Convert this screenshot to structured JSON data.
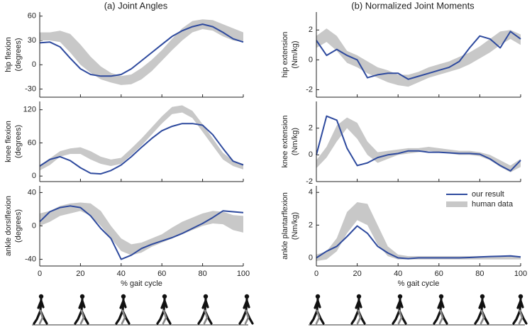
{
  "chart_data": [
    {
      "type": "line",
      "title": "(a) Joint Angles",
      "ylabel": [
        "hip flexion",
        "(degrees)"
      ],
      "x": [
        0,
        5,
        10,
        15,
        20,
        25,
        30,
        35,
        40,
        45,
        50,
        55,
        60,
        65,
        70,
        75,
        80,
        85,
        90,
        95,
        100
      ],
      "xlim": [
        0,
        100
      ],
      "ylim": [
        -40,
        65
      ],
      "xticks": [
        0,
        20,
        40,
        60,
        80,
        100
      ],
      "yticks": [
        -30,
        0,
        30,
        60
      ],
      "series": [
        {
          "type": "band",
          "color": "#c8c8c8",
          "low": [
            30,
            30,
            28,
            15,
            0,
            -10,
            -18,
            -22,
            -25,
            -24,
            -18,
            -8,
            5,
            18,
            30,
            40,
            44,
            42,
            35,
            30,
            28
          ],
          "high": [
            40,
            40,
            42,
            38,
            25,
            10,
            -2,
            -10,
            -14,
            -12,
            -4,
            6,
            18,
            32,
            45,
            54,
            56,
            55,
            50,
            45,
            40
          ]
        },
        {
          "type": "line",
          "color": "#2e4a9e",
          "values": [
            27,
            28,
            22,
            8,
            -5,
            -12,
            -14,
            -14,
            -12,
            -5,
            5,
            15,
            25,
            35,
            42,
            47,
            50,
            47,
            40,
            32,
            28
          ]
        }
      ]
    },
    {
      "type": "line",
      "ylabel": [
        "knee flexion",
        "(degrees)"
      ],
      "x": [
        0,
        5,
        10,
        15,
        20,
        25,
        30,
        35,
        40,
        45,
        50,
        55,
        60,
        65,
        70,
        75,
        80,
        85,
        90,
        95,
        100
      ],
      "xlim": [
        0,
        100
      ],
      "ylim": [
        -10,
        135
      ],
      "xticks": [
        0,
        20,
        40,
        60,
        80,
        100
      ],
      "yticks": [
        0,
        60,
        120
      ],
      "series": [
        {
          "type": "band",
          "color": "#c8c8c8",
          "low": [
            10,
            20,
            35,
            40,
            40,
            30,
            22,
            18,
            22,
            38,
            55,
            75,
            95,
            112,
            115,
            105,
            80,
            55,
            30,
            18,
            12
          ],
          "high": [
            20,
            32,
            45,
            50,
            52,
            45,
            35,
            30,
            33,
            50,
            68,
            88,
            108,
            125,
            128,
            118,
            94,
            68,
            42,
            28,
            22
          ]
        },
        {
          "type": "line",
          "color": "#2e4a9e",
          "values": [
            18,
            30,
            35,
            28,
            15,
            5,
            4,
            10,
            20,
            35,
            52,
            68,
            82,
            90,
            95,
            95,
            92,
            75,
            50,
            27,
            20
          ]
        }
      ]
    },
    {
      "type": "line",
      "ylabel": [
        "ankle dorsiflexion",
        "(degrees)"
      ],
      "xlabel": "% gait cycle",
      "x": [
        0,
        5,
        10,
        15,
        20,
        25,
        30,
        35,
        40,
        45,
        50,
        55,
        60,
        65,
        70,
        75,
        80,
        85,
        90,
        95,
        100
      ],
      "xlim": [
        0,
        100
      ],
      "ylim": [
        -48,
        48
      ],
      "xticks": [
        0,
        20,
        40,
        60,
        80,
        100
      ],
      "yticks": [
        -40,
        0,
        40
      ],
      "series": [
        {
          "type": "band",
          "color": "#c8c8c8",
          "low": [
            0,
            5,
            12,
            15,
            18,
            12,
            0,
            -15,
            -30,
            -35,
            -32,
            -25,
            -20,
            -15,
            -10,
            -5,
            0,
            3,
            2,
            -5,
            -8
          ],
          "high": [
            15,
            18,
            24,
            27,
            28,
            27,
            18,
            0,
            -15,
            -22,
            -20,
            -15,
            -10,
            -2,
            5,
            10,
            15,
            18,
            17,
            13,
            12
          ]
        },
        {
          "type": "line",
          "color": "#2e4a9e",
          "values": [
            5,
            17,
            22,
            24,
            22,
            12,
            -3,
            -15,
            -40,
            -35,
            -27,
            -22,
            -18,
            -14,
            -9,
            -3,
            3,
            10,
            18,
            17,
            16
          ]
        }
      ]
    },
    {
      "type": "line",
      "title": "(b) Normalized Joint Moments",
      "ylabel": [
        "hip extension",
        "(Nm/kg)"
      ],
      "x": [
        0,
        5,
        10,
        15,
        20,
        25,
        30,
        35,
        40,
        45,
        50,
        55,
        60,
        65,
        70,
        75,
        80,
        85,
        90,
        95,
        100
      ],
      "xlim": [
        0,
        100
      ],
      "ylim": [
        -2.5,
        3.2
      ],
      "xticks": [
        0,
        20,
        40,
        60,
        80,
        100
      ],
      "yticks": [
        -2,
        0,
        2
      ],
      "series": [
        {
          "type": "band",
          "color": "#c8c8c8",
          "low": [
            0.8,
            1.2,
            0.6,
            -0.2,
            -0.5,
            -0.9,
            -1.2,
            -1.5,
            -1.7,
            -1.8,
            -1.5,
            -1.2,
            -1.0,
            -0.8,
            -0.6,
            -0.3,
            0.1,
            0.5,
            1.0,
            1.4,
            1.0
          ],
          "high": [
            1.6,
            2.1,
            1.6,
            0.6,
            0.3,
            -0.1,
            -0.5,
            -0.7,
            -1.0,
            -1.0,
            -0.8,
            -0.5,
            -0.3,
            -0.1,
            0.2,
            0.5,
            0.9,
            1.4,
            1.9,
            2.0,
            1.7
          ]
        },
        {
          "type": "line",
          "color": "#2e4a9e",
          "values": [
            1.3,
            0.3,
            0.7,
            0.3,
            0,
            -1.2,
            -1.0,
            -0.9,
            -0.9,
            -1.3,
            -1.1,
            -0.9,
            -0.7,
            -0.5,
            -0.1,
            0.8,
            1.6,
            1.4,
            0.8,
            1.9,
            1.4
          ]
        }
      ]
    },
    {
      "type": "line",
      "ylabel": [
        "knee extension",
        "(Nm/kg)"
      ],
      "x": [
        0,
        5,
        10,
        15,
        20,
        25,
        30,
        35,
        40,
        45,
        50,
        55,
        60,
        65,
        70,
        75,
        80,
        85,
        90,
        95,
        100
      ],
      "xlim": [
        0,
        100
      ],
      "ylim": [
        -2,
        4
      ],
      "xticks": [
        0,
        20,
        40,
        60,
        80,
        100
      ],
      "yticks": [
        -2,
        0,
        2
      ],
      "series": [
        {
          "type": "band",
          "color": "#c8c8c8",
          "low": [
            -1.0,
            -0.2,
            1.0,
            2.0,
            1.2,
            0.0,
            -0.6,
            -0.3,
            0,
            0.1,
            0.2,
            0.3,
            0.2,
            0.1,
            0,
            0,
            -0.1,
            -0.4,
            -0.9,
            -1.3,
            -0.9
          ],
          "high": [
            -0.4,
            0.6,
            2.2,
            2.8,
            2.4,
            1.0,
            0.2,
            0.3,
            0.4,
            0.5,
            0.5,
            0.6,
            0.5,
            0.4,
            0.3,
            0.3,
            0.2,
            0,
            -0.4,
            -0.8,
            -0.3
          ]
        },
        {
          "type": "line",
          "color": "#2e4a9e",
          "values": [
            0,
            2.9,
            2.6,
            0.5,
            -0.8,
            -0.6,
            -0.2,
            0,
            0.1,
            0.3,
            0.3,
            0.2,
            0.2,
            0.15,
            0.1,
            0.1,
            0.05,
            -0.3,
            -0.8,
            -1.2,
            -0.4
          ]
        }
      ]
    },
    {
      "type": "line",
      "ylabel": [
        "ankle plantarflexion",
        "(Nm/kg)"
      ],
      "xlabel": "% gait cycle",
      "legend": "upper right",
      "x": [
        0,
        5,
        10,
        15,
        20,
        25,
        30,
        35,
        40,
        45,
        50,
        55,
        60,
        65,
        70,
        75,
        80,
        85,
        90,
        95,
        100
      ],
      "xlim": [
        0,
        100
      ],
      "ylim": [
        -0.5,
        4.4
      ],
      "xticks": [
        0,
        20,
        40,
        60,
        80,
        100
      ],
      "yticks": [
        0,
        2,
        4
      ],
      "series": [
        {
          "type": "band",
          "name": "human data",
          "color": "#c8c8c8",
          "low": [
            -0.2,
            -0.1,
            0.4,
            1.5,
            2.3,
            2.0,
            0.8,
            0.1,
            -0.1,
            -0.1,
            -0.1,
            -0.1,
            -0.1,
            -0.1,
            -0.1,
            -0.1,
            -0.1,
            -0.1,
            -0.1,
            -0.1,
            -0.1
          ],
          "high": [
            0.2,
            0.4,
            1.2,
            2.8,
            3.4,
            3.3,
            2.0,
            0.7,
            0.2,
            0.1,
            0.1,
            0.1,
            0.1,
            0.1,
            0.1,
            0.1,
            0.1,
            0.1,
            0.1,
            0.1,
            0.1
          ]
        },
        {
          "type": "line",
          "name": "our result",
          "color": "#2e4a9e",
          "values": [
            0,
            0.4,
            0.7,
            1.3,
            1.95,
            1.5,
            0.7,
            0.3,
            0,
            -0.05,
            0,
            0,
            0,
            0,
            0,
            0.02,
            0.05,
            0.08,
            0.1,
            0.12,
            0.05
          ]
        }
      ]
    }
  ]
}
